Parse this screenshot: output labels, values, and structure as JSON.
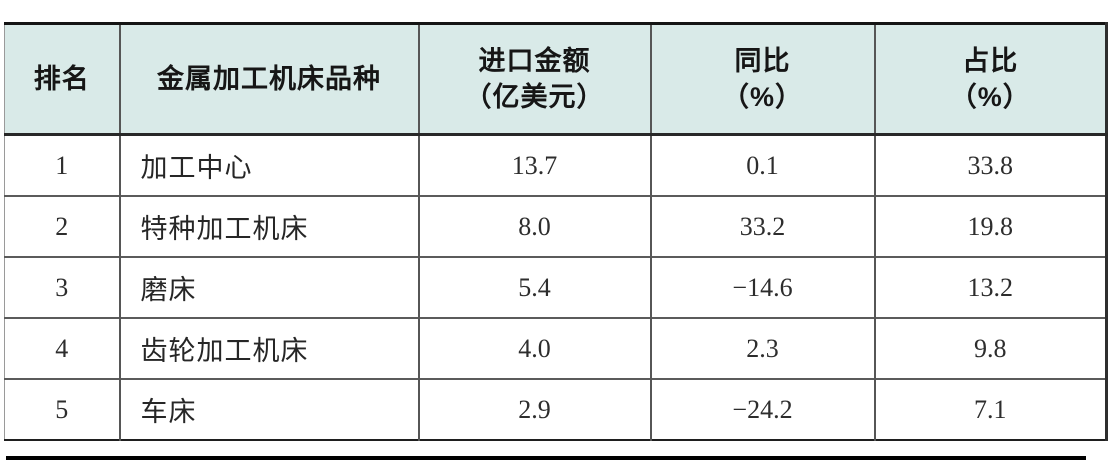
{
  "table": {
    "columns": [
      {
        "label": "排名",
        "sub": ""
      },
      {
        "label": "金属加工机床品种",
        "sub": ""
      },
      {
        "label": "进口金额",
        "sub": "（亿美元）"
      },
      {
        "label": "同比",
        "sub": "（%）"
      },
      {
        "label": "占比",
        "sub": "（%）"
      }
    ],
    "rows": [
      {
        "rank": "1",
        "variety": "加工中心",
        "import_value": "13.7",
        "yoy": "0.1",
        "share": "33.8"
      },
      {
        "rank": "2",
        "variety": "特种加工机床",
        "import_value": "8.0",
        "yoy": "33.2",
        "share": "19.8"
      },
      {
        "rank": "3",
        "variety": "磨床",
        "import_value": "5.4",
        "yoy": "−14.6",
        "share": "13.2"
      },
      {
        "rank": "4",
        "variety": "齿轮加工机床",
        "import_value": "4.0",
        "yoy": "2.3",
        "share": "9.8"
      },
      {
        "rank": "5",
        "variety": "车床",
        "import_value": "2.9",
        "yoy": "−24.2",
        "share": "7.1"
      }
    ]
  },
  "colors": {
    "header_bg": "#d9eae8",
    "grid_line": "#565656",
    "outer_border": "#141414",
    "page_rule": "#000000",
    "body_text": "#2d2d2d"
  }
}
